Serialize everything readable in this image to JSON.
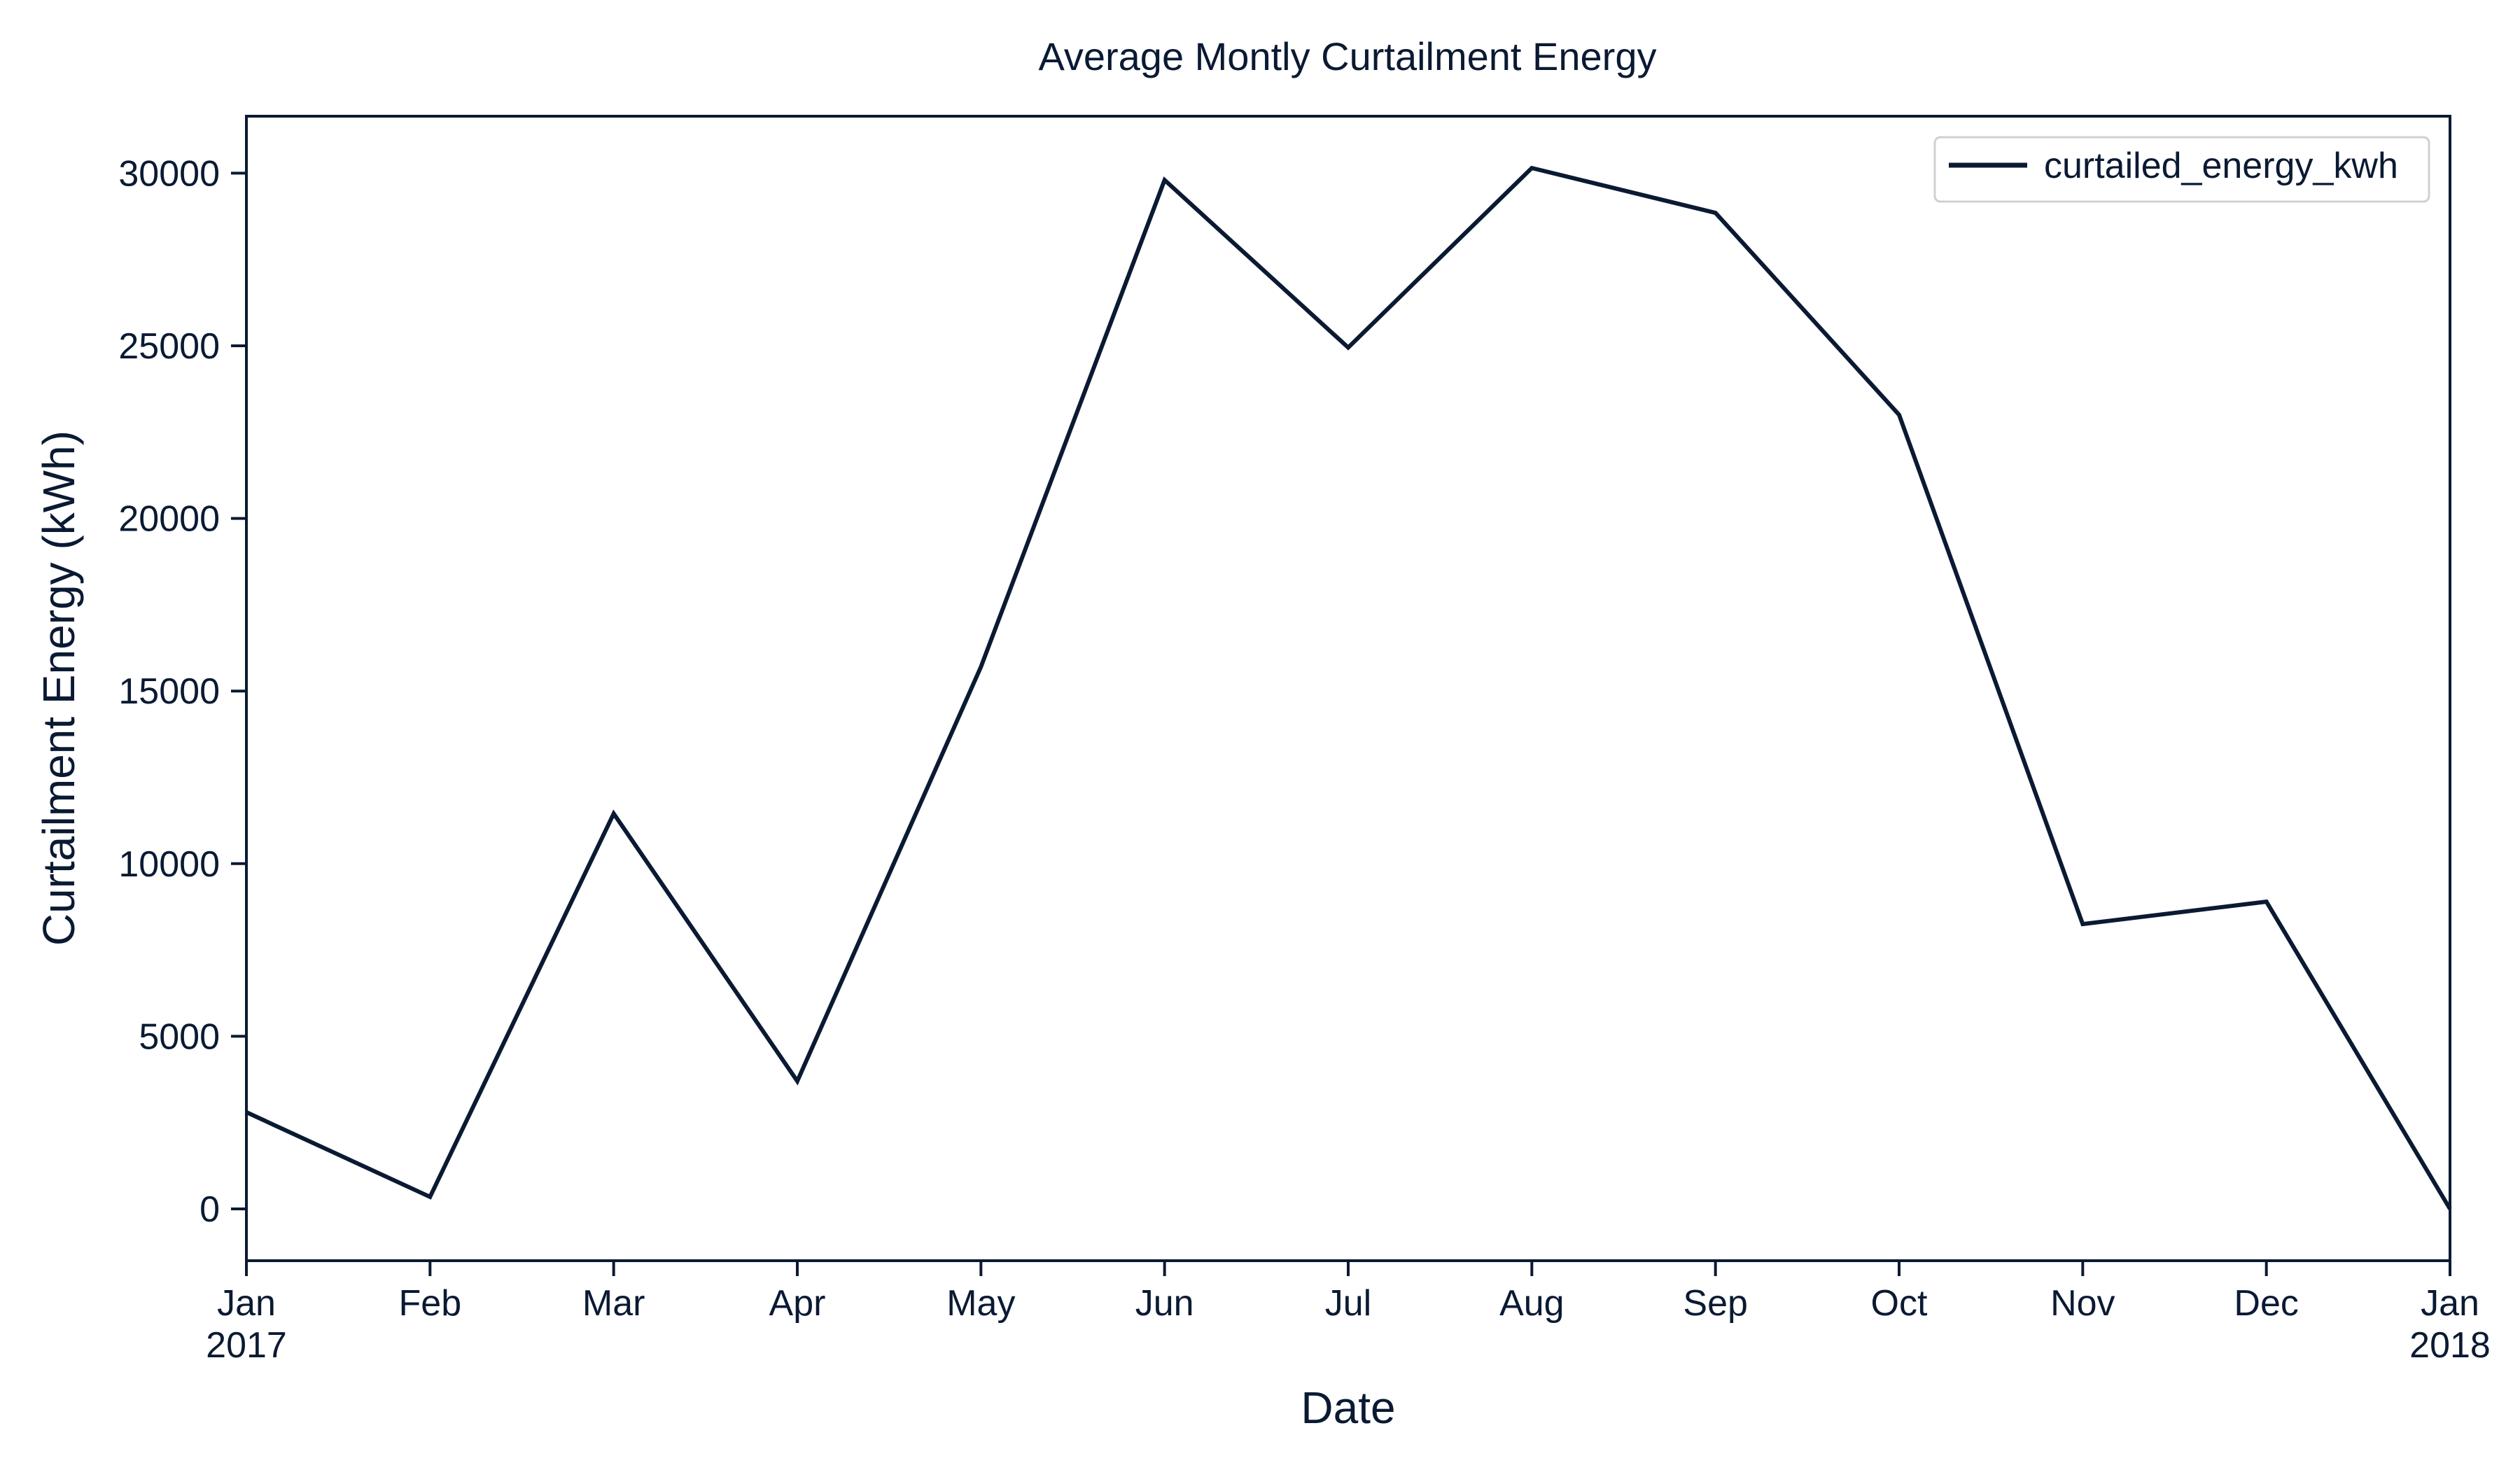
{
  "chart_data": {
    "type": "line",
    "title": "Average Montly Curtailment Energy",
    "xlabel": "Date",
    "ylabel": "Curtailment Energy (kWh)",
    "x": [
      "2017-01",
      "2017-02",
      "2017-03",
      "2017-04",
      "2017-05",
      "2017-06",
      "2017-07",
      "2017-08",
      "2017-09",
      "2017-10",
      "2017-11",
      "2017-12",
      "2018-01"
    ],
    "series": [
      {
        "name": "curtailed_energy_kwh",
        "color": "#0b1a33",
        "values": [
          2800,
          350,
          11450,
          3700,
          15700,
          29800,
          24950,
          30150,
          28850,
          23000,
          8250,
          8900,
          0
        ]
      }
    ],
    "xticks": [
      {
        "month": "Jan",
        "year": "2017"
      },
      {
        "month": "Feb",
        "year": ""
      },
      {
        "month": "Mar",
        "year": ""
      },
      {
        "month": "Apr",
        "year": ""
      },
      {
        "month": "May",
        "year": ""
      },
      {
        "month": "Jun",
        "year": ""
      },
      {
        "month": "Jul",
        "year": ""
      },
      {
        "month": "Aug",
        "year": ""
      },
      {
        "month": "Sep",
        "year": ""
      },
      {
        "month": "Oct",
        "year": ""
      },
      {
        "month": "Nov",
        "year": ""
      },
      {
        "month": "Dec",
        "year": ""
      },
      {
        "month": "Jan",
        "year": "2018"
      }
    ],
    "yticks": [
      0,
      5000,
      10000,
      15000,
      20000,
      25000,
      30000
    ],
    "ylim": [
      -1500,
      31650
    ],
    "grid": false,
    "legend_position": "upper right"
  }
}
